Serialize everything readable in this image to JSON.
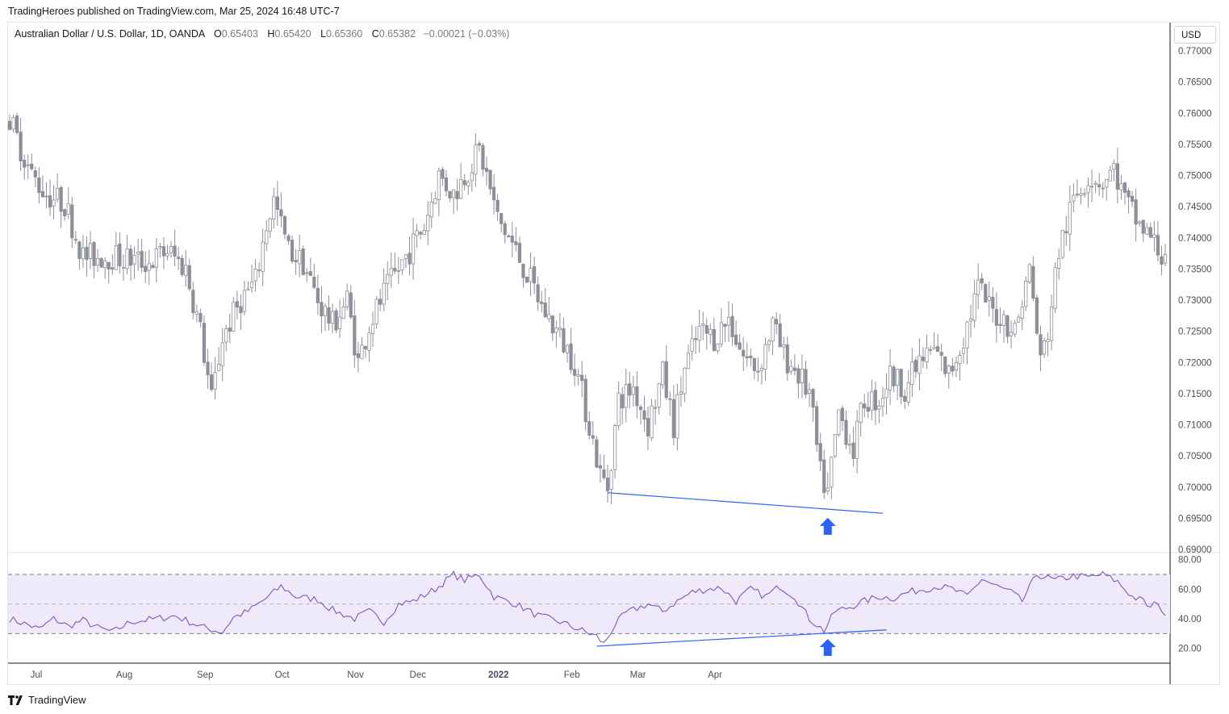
{
  "header": {
    "published_by": "TradingHeroes published on TradingView.com, Mar 25, 2024 16:48 UTC-7"
  },
  "legend": {
    "symbol": "Australian Dollar / U.S. Dollar, 1D, OANDA",
    "open_label": "O",
    "open": "0.65403",
    "high_label": "H",
    "high": "0.65420",
    "low_label": "L",
    "low": "0.65360",
    "close_label": "C",
    "close": "0.65382",
    "change": "−0.00021 (−0.03%)"
  },
  "currency_button": "USD",
  "footer": {
    "brand": "TradingView"
  },
  "colors": {
    "candle": "#8c8f98",
    "candle_up_body": "#ffffff",
    "candle_down_body": "#8c8f98",
    "trendline": "#2962ff",
    "arrow": "#2962ff",
    "rsi_line": "#7e57c2",
    "rsi_band": "#efeaf9"
  },
  "chart_data": [
    {
      "type": "candlestick",
      "x_axis": {
        "tick_labels": [
          "Jul",
          "Aug",
          "Sep",
          "Oct",
          "Nov",
          "Dec",
          "2022",
          "Feb",
          "Mar",
          "Apr"
        ],
        "bold_labels": [
          "2022"
        ]
      },
      "y_axis": {
        "side": "right",
        "ylim": [
          0.69,
          0.77
        ],
        "tick_labels": [
          "0.77000",
          "0.76500",
          "0.76000",
          "0.75500",
          "0.75000",
          "0.74500",
          "0.74000",
          "0.73500",
          "0.73000",
          "0.72500",
          "0.72000",
          "0.71500",
          "0.71000",
          "0.70500",
          "0.70000",
          "0.69500",
          "0.69000"
        ]
      },
      "waypoints": [
        [
          0,
          0.759
        ],
        [
          6,
          0.75
        ],
        [
          10,
          0.747
        ],
        [
          15,
          0.7455
        ],
        [
          20,
          0.737
        ],
        [
          28,
          0.737
        ],
        [
          38,
          0.736
        ],
        [
          43,
          0.738
        ],
        [
          48,
          0.735
        ],
        [
          52,
          0.725
        ],
        [
          55,
          0.714
        ],
        [
          58,
          0.724
        ],
        [
          63,
          0.73
        ],
        [
          67,
          0.733
        ],
        [
          70,
          0.742
        ],
        [
          72,
          0.746
        ],
        [
          76,
          0.738
        ],
        [
          80,
          0.736
        ],
        [
          84,
          0.73
        ],
        [
          88,
          0.726
        ],
        [
          92,
          0.73
        ],
        [
          95,
          0.72
        ],
        [
          98,
          0.726
        ],
        [
          102,
          0.731
        ],
        [
          108,
          0.737
        ],
        [
          113,
          0.742
        ],
        [
          117,
          0.75
        ],
        [
          121,
          0.747
        ],
        [
          125,
          0.751
        ],
        [
          128,
          0.754
        ],
        [
          130,
          0.75
        ],
        [
          133,
          0.743
        ],
        [
          137,
          0.739
        ],
        [
          142,
          0.733
        ],
        [
          145,
          0.729
        ],
        [
          150,
          0.724
        ],
        [
          154,
          0.72
        ],
        [
          158,
          0.71
        ],
        [
          161,
          0.702
        ],
        [
          163,
          0.7
        ],
        [
          166,
          0.714
        ],
        [
          170,
          0.716
        ],
        [
          174,
          0.71
        ],
        [
          178,
          0.718
        ],
        [
          181,
          0.71
        ],
        [
          184,
          0.719
        ],
        [
          188,
          0.725
        ],
        [
          192,
          0.724
        ],
        [
          196,
          0.727
        ],
        [
          200,
          0.721
        ],
        [
          204,
          0.719
        ],
        [
          208,
          0.726
        ],
        [
          211,
          0.721
        ],
        [
          214,
          0.719
        ],
        [
          218,
          0.715
        ],
        [
          221,
          0.702
        ],
        [
          223,
          0.699
        ],
        [
          226,
          0.712
        ],
        [
          230,
          0.706
        ],
        [
          233,
          0.714
        ],
        [
          237,
          0.714
        ],
        [
          240,
          0.718
        ],
        [
          244,
          0.716
        ],
        [
          248,
          0.72
        ],
        [
          252,
          0.722
        ],
        [
          256,
          0.718
        ],
        [
          260,
          0.724
        ],
        [
          264,
          0.732
        ],
        [
          268,
          0.728
        ],
        [
          271,
          0.727
        ],
        [
          274,
          0.725
        ],
        [
          278,
          0.735
        ],
        [
          281,
          0.72
        ],
        [
          283,
          0.725
        ],
        [
          286,
          0.738
        ],
        [
          290,
          0.746
        ],
        [
          294,
          0.75
        ],
        [
          298,
          0.749
        ],
        [
          301,
          0.751
        ],
        [
          304,
          0.746
        ],
        [
          308,
          0.742
        ],
        [
          311,
          0.74
        ],
        [
          314,
          0.737
        ],
        [
          315,
          0.738
        ]
      ],
      "trendline": {
        "from": [
          163,
          0.6991
        ],
        "to": [
          238,
          0.6958
        ],
        "color": "#2962ff"
      },
      "annotation": {
        "shape": "up-arrow",
        "at": [
          223,
          0.6948
        ]
      }
    },
    {
      "type": "line",
      "series": [
        {
          "name": "",
          "indicator": "RSI"
        }
      ],
      "y_axis": {
        "side": "right",
        "ylim": [
          10,
          82
        ],
        "tick_labels": [
          "80.00",
          "60.00",
          "40.00",
          "20.00"
        ]
      },
      "levels": {
        "upper": 70,
        "middle": 50,
        "lower": 30,
        "band": [
          30,
          70
        ]
      },
      "waypoints": [
        [
          0,
          40
        ],
        [
          5,
          36
        ],
        [
          8,
          33
        ],
        [
          12,
          40
        ],
        [
          16,
          35
        ],
        [
          20,
          39
        ],
        [
          24,
          34
        ],
        [
          28,
          31
        ],
        [
          33,
          38
        ],
        [
          40,
          40
        ],
        [
          45,
          42
        ],
        [
          48,
          39
        ],
        [
          53,
          34
        ],
        [
          58,
          31
        ],
        [
          61,
          41
        ],
        [
          65,
          45
        ],
        [
          70,
          54
        ],
        [
          74,
          62
        ],
        [
          78,
          55
        ],
        [
          84,
          53
        ],
        [
          88,
          46
        ],
        [
          94,
          40
        ],
        [
          98,
          45
        ],
        [
          102,
          38
        ],
        [
          106,
          50
        ],
        [
          110,
          52
        ],
        [
          116,
          60
        ],
        [
          121,
          70
        ],
        [
          124,
          66
        ],
        [
          128,
          70
        ],
        [
          132,
          55
        ],
        [
          138,
          50
        ],
        [
          144,
          42
        ],
        [
          150,
          38
        ],
        [
          155,
          33
        ],
        [
          160,
          28
        ],
        [
          162,
          23
        ],
        [
          165,
          36
        ],
        [
          168,
          44
        ],
        [
          174,
          50
        ],
        [
          178,
          45
        ],
        [
          182,
          52
        ],
        [
          186,
          58
        ],
        [
          190,
          60
        ],
        [
          194,
          61
        ],
        [
          198,
          52
        ],
        [
          202,
          60
        ],
        [
          206,
          55
        ],
        [
          210,
          62
        ],
        [
          214,
          55
        ],
        [
          218,
          40
        ],
        [
          222,
          32
        ],
        [
          225,
          45
        ],
        [
          229,
          48
        ],
        [
          233,
          52
        ],
        [
          237,
          55
        ],
        [
          241,
          54
        ],
        [
          245,
          58
        ],
        [
          249,
          60
        ],
        [
          253,
          62
        ],
        [
          257,
          60
        ],
        [
          261,
          55
        ],
        [
          265,
          67
        ],
        [
          269,
          62
        ],
        [
          273,
          58
        ],
        [
          276,
          52
        ],
        [
          280,
          70
        ],
        [
          285,
          66
        ],
        [
          290,
          69
        ],
        [
          294,
          68
        ],
        [
          298,
          70
        ],
        [
          302,
          65
        ],
        [
          306,
          55
        ],
        [
          309,
          52
        ],
        [
          311,
          47
        ],
        [
          313,
          52
        ],
        [
          315,
          40
        ]
      ],
      "divergence_line": {
        "from": [
          160,
          21.5
        ],
        "to": [
          239,
          32.5
        ],
        "color": "#2962ff"
      },
      "annotation": {
        "shape": "up-arrow",
        "at": [
          223,
          22
        ]
      }
    }
  ]
}
